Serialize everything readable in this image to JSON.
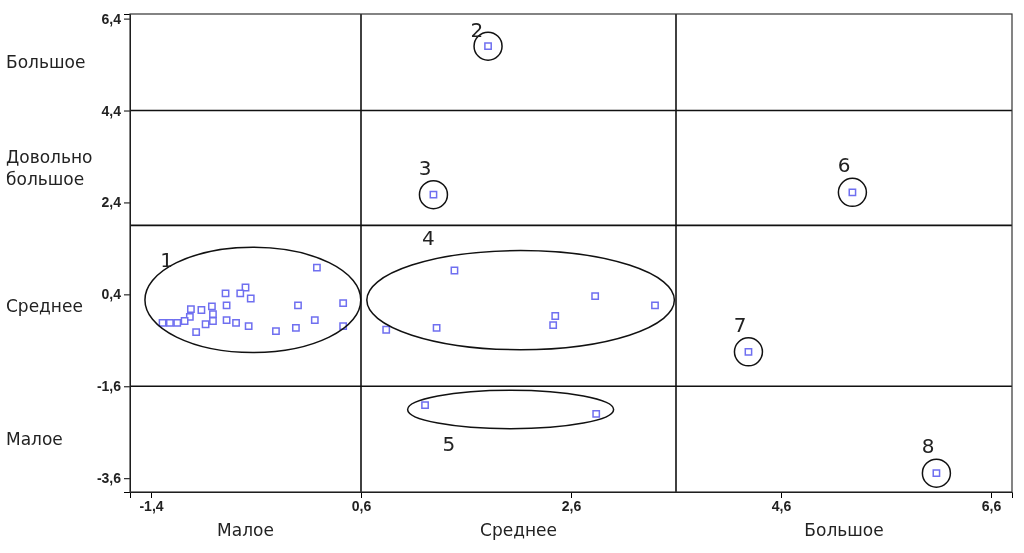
{
  "chart_data": {
    "type": "scatter",
    "marker": "square",
    "grid": false,
    "xlim": [
      -1.6,
      6.8
    ],
    "ylim": [
      -3.9,
      6.5
    ],
    "xticks": [
      {
        "value": -1.4,
        "label": "-1,4"
      },
      {
        "value": 0.6,
        "label": "0,6"
      },
      {
        "value": 2.6,
        "label": "2,6"
      },
      {
        "value": 4.6,
        "label": "4,6"
      },
      {
        "value": 6.6,
        "label": "6,6"
      }
    ],
    "yticks": [
      {
        "value": 6.4,
        "label": "6,4"
      },
      {
        "value": 4.4,
        "label": "4,4"
      },
      {
        "value": 2.4,
        "label": "2,4"
      },
      {
        "value": 0.4,
        "label": "0,4"
      },
      {
        "value": -1.6,
        "label": "-1,6"
      },
      {
        "value": -3.6,
        "label": "-3,6"
      }
    ],
    "series": [
      {
        "color": "#6f6ff0",
        "x": [
          0.18,
          0.43,
          0.43,
          0.16,
          0.0,
          -0.02,
          -0.21,
          -0.45,
          -0.5,
          -0.55,
          -0.69,
          -0.68,
          -0.68,
          -0.59,
          -0.47,
          -0.82,
          -0.81,
          -0.81,
          -0.92,
          -0.88,
          -0.97,
          -1.02,
          -1.03,
          -1.08,
          -1.15,
          -1.22,
          -1.29
        ],
        "values": [
          0.98,
          0.21,
          -0.29,
          -0.16,
          0.16,
          -0.33,
          -0.4,
          0.31,
          0.55,
          0.42,
          0.42,
          0.16,
          -0.16,
          -0.22,
          -0.29,
          0.14,
          -0.03,
          -0.18,
          0.06,
          -0.25,
          -0.42,
          0.08,
          -0.09,
          -0.18,
          -0.22,
          -0.22,
          -0.22
        ]
      },
      {
        "color": "#6f6ff0",
        "x": [
          1.81
        ],
        "values": [
          5.8
        ]
      },
      {
        "color": "#6f6ff0",
        "x": [
          1.29
        ],
        "values": [
          2.57
        ]
      },
      {
        "color": "#6f6ff0",
        "x": [
          1.49,
          0.84,
          1.32,
          2.45,
          2.43,
          2.83,
          3.4
        ],
        "values": [
          0.92,
          -0.37,
          -0.33,
          -0.07,
          -0.27,
          0.36,
          0.16
        ]
      },
      {
        "color": "#6f6ff0",
        "x": [
          1.21,
          2.84
        ],
        "values": [
          -2.01,
          -2.2
        ]
      },
      {
        "color": "#6f6ff0",
        "x": [
          5.28
        ],
        "values": [
          2.62
        ]
      },
      {
        "color": "#6f6ff0",
        "x": [
          4.29
        ],
        "values": [
          -0.85
        ]
      },
      {
        "color": "#6f6ff0",
        "x": [
          6.08
        ],
        "values": [
          -3.49
        ]
      }
    ],
    "ref_lines": [
      {
        "axis": "x",
        "value": 0.6
      },
      {
        "axis": "x",
        "value": 3.6
      },
      {
        "axis": "y",
        "value": 4.4
      },
      {
        "axis": "y",
        "value": 1.9
      },
      {
        "axis": "y",
        "value": -1.6
      }
    ],
    "annotations": [
      "1",
      "2",
      "3",
      "4",
      "5",
      "6",
      "7",
      "8",
      "Большое",
      "Довольно большое",
      "Среднее",
      "Малое",
      "Малое",
      "Среднее",
      "Большое"
    ]
  }
}
